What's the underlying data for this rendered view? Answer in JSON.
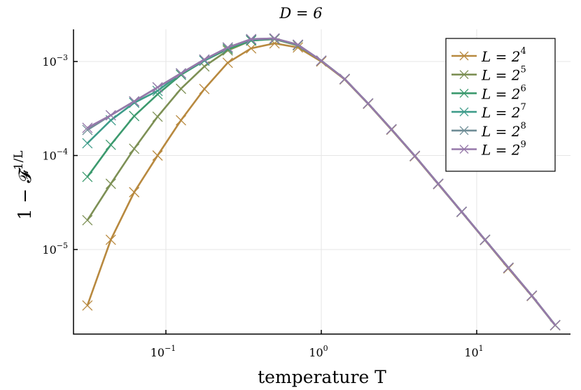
{
  "chart_data": {
    "type": "line",
    "title": "D = 6",
    "xlabel": "temperature T",
    "ylabel": "1 − 𝓕^(1/L)",
    "xscale": "log",
    "yscale": "log",
    "xlim": [
      0.026,
      40
    ],
    "ylim": [
      8.5e-07,
      0.0022
    ],
    "grid": true,
    "legend_position": "top-right",
    "marker": "x",
    "x_ticks": [
      {
        "value": 0.1,
        "base": "10",
        "exp": "−1"
      },
      {
        "value": 1,
        "base": "10",
        "exp": "0"
      },
      {
        "value": 10,
        "base": "10",
        "exp": "1"
      }
    ],
    "y_ticks": [
      {
        "value": 0.001,
        "base": "10",
        "exp": "−3"
      },
      {
        "value": 0.0001,
        "base": "10",
        "exp": "−4"
      },
      {
        "value": 1e-05,
        "base": "10",
        "exp": "−5"
      }
    ],
    "x": [
      0.03125,
      0.0442,
      0.0625,
      0.0884,
      0.125,
      0.1768,
      0.25,
      0.3536,
      0.5,
      0.7071,
      1,
      1.414,
      2,
      2.828,
      4,
      5.657,
      8,
      11.31,
      16,
      22.63,
      32
    ],
    "series": [
      {
        "name": "L = 2^4",
        "label_base": "L = 2",
        "label_exp": "4",
        "color": "#b8893f",
        "values": [
          2.54e-06,
          1.27e-05,
          4.07e-05,
          0.0001,
          0.000237,
          0.00051,
          0.00097,
          0.00138,
          0.00156,
          0.00141,
          0.001,
          0.000645,
          0.000355,
          0.000188,
          9.8e-05,
          4.95e-05,
          2.5e-05,
          1.26e-05,
          6.3e-06,
          3.2e-06,
          1.56e-06
        ]
      },
      {
        "name": "L = 2^5",
        "label_base": "L = 2",
        "label_exp": "5",
        "color": "#7d9055",
        "values": [
          2.05e-05,
          5e-05,
          0.000118,
          0.000259,
          0.000513,
          0.000887,
          0.00131,
          0.00167,
          0.00173,
          0.00148,
          0.00102,
          0.000652,
          0.000358,
          0.00019,
          9.9e-05,
          5e-05,
          2.52e-05,
          1.27e-05,
          6.4e-06,
          3.23e-06,
          1.57e-06
        ]
      },
      {
        "name": "L = 2^6",
        "label_base": "L = 2",
        "label_exp": "6",
        "color": "#3c9a6e",
        "values": [
          5.93e-05,
          0.00013,
          0.000263,
          0.000448,
          0.000722,
          0.00102,
          0.00136,
          0.00167,
          0.00174,
          0.0015,
          0.00102,
          0.000652,
          0.000358,
          0.00019,
          9.9e-05,
          5e-05,
          2.52e-05,
          1.27e-05,
          6.4e-06,
          3.23e-06,
          1.57e-06
        ]
      },
      {
        "name": "L = 2^7",
        "label_base": "L = 2",
        "label_exp": "7",
        "color": "#3e9c8a",
        "values": [
          0.000135,
          0.000237,
          0.000364,
          0.000487,
          0.000748,
          0.00102,
          0.00141,
          0.0017,
          0.00175,
          0.0015,
          0.00102,
          0.000652,
          0.000358,
          0.00019,
          9.9e-05,
          5e-05,
          2.52e-05,
          1.27e-05,
          6.4e-06,
          3.23e-06,
          1.57e-06
        ]
      },
      {
        "name": "L = 2^8",
        "label_base": "L = 2",
        "label_exp": "8",
        "color": "#6f8d96",
        "values": [
          0.000187,
          0.000268,
          0.000377,
          0.000531,
          0.000748,
          0.00105,
          0.00141,
          0.00173,
          0.00176,
          0.00151,
          0.00102,
          0.000652,
          0.000358,
          0.00019,
          9.9e-05,
          5e-05,
          2.52e-05,
          1.27e-05,
          6.4e-06,
          3.23e-06,
          1.57e-06
        ]
      },
      {
        "name": "L = 2^9",
        "label_base": "L = 2",
        "label_exp": "9",
        "color": "#9679aa",
        "values": [
          0.000197,
          0.000268,
          0.000377,
          0.000531,
          0.000748,
          0.00105,
          0.00141,
          0.00173,
          0.00176,
          0.00151,
          0.00102,
          0.000652,
          0.000358,
          0.00019,
          9.9e-05,
          5e-05,
          2.52e-05,
          1.27e-05,
          6.4e-06,
          3.23e-06,
          1.57e-06
        ]
      }
    ]
  }
}
